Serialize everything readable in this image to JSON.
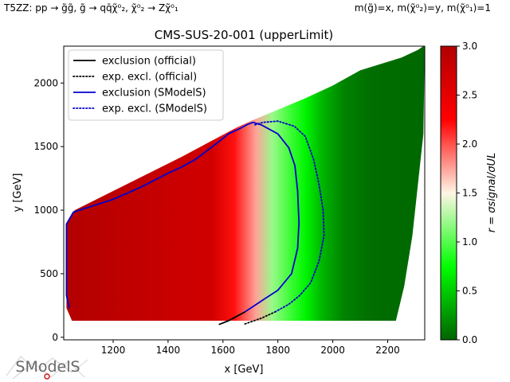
{
  "header": {
    "left": "T5ZZ: pp → g̃g̃, g̃ → qq̄χ̃⁰₂, χ̃⁰₂ → Zχ̃⁰₁",
    "right": "m(g̃)=x, m(χ̃⁰₂)=y, m(χ̃⁰₁)=1"
  },
  "logo": {
    "text": "SModelS"
  },
  "chart_data": {
    "type": "heatmap",
    "title": "CMS-SUS-20-001 (upperLimit)",
    "xlabel": "x [GeV]",
    "ylabel": "y [GeV]",
    "xlim": [
      1020,
      2335
    ],
    "ylim": [
      -20,
      2290
    ],
    "xticks": [
      1200,
      1400,
      1600,
      1800,
      2000,
      2200
    ],
    "yticks": [
      0,
      500,
      1000,
      1500,
      2000
    ],
    "colorbar": {
      "label": "r = σsignal/σUL",
      "range": [
        0.0,
        3.0
      ],
      "ticks": [
        0.0,
        0.5,
        1.0,
        1.5,
        2.0,
        2.5,
        3.0
      ],
      "colormap": [
        "#006400",
        "#00ff00",
        "#fff5e6",
        "#ff0000",
        "#b20000"
      ]
    },
    "region": {
      "lower_left": [
        [
          1050,
          130
        ],
        [
          1030,
          230
        ],
        [
          1030,
          900
        ],
        [
          1060,
          1000
        ]
      ],
      "upper_left_edge": [
        [
          1060,
          1000
        ],
        [
          1450,
          1420
        ],
        [
          1650,
          1650
        ],
        [
          1700,
          1700
        ]
      ],
      "upper_right_edge": [
        [
          1700,
          1700
        ],
        [
          1900,
          1880
        ],
        [
          2000,
          1980
        ],
        [
          2100,
          2100
        ],
        [
          2250,
          2200
        ],
        [
          2310,
          2260
        ],
        [
          2330,
          2290
        ]
      ],
      "bottom_y": 130,
      "bottom_right_x": 2230,
      "right_edge": [
        [
          2230,
          130
        ],
        [
          2260,
          400
        ],
        [
          2290,
          800
        ],
        [
          2310,
          1200
        ],
        [
          2330,
          1600
        ],
        [
          2335,
          2290
        ]
      ]
    },
    "r_profile": {
      "x": [
        1020,
        1560,
        1640,
        1720,
        1780,
        1840,
        1900,
        1960,
        2040,
        2140,
        2335
      ],
      "r": [
        3.0,
        2.7,
        2.2,
        1.75,
        1.2,
        0.95,
        0.7,
        0.4,
        0.15,
        0.05,
        0.02
      ]
    },
    "legend": {
      "position": "upper-left",
      "entries": [
        {
          "label": "exclusion (official)",
          "color": "#000000",
          "style": "solid"
        },
        {
          "label": "exp. excl. (official)",
          "color": "#000000",
          "style": "dotted"
        },
        {
          "label": "exclusion (SModelS)",
          "color": "#0000cc",
          "style": "solid"
        },
        {
          "label": "exp. excl. (SModelS)",
          "color": "#0000cc",
          "style": "dotted"
        }
      ]
    },
    "series": [
      {
        "name": "exclusion (official)",
        "color": "#000000",
        "style": "solid",
        "points": [
          [
            1585,
            100
          ],
          [
            1620,
            130
          ],
          [
            1680,
            200
          ]
        ]
      },
      {
        "name": "exp. excl. (official)",
        "color": "#000000",
        "style": "dotted",
        "points": [
          [
            1680,
            105
          ],
          [
            1740,
            150
          ],
          [
            1790,
            200
          ]
        ]
      },
      {
        "name": "exclusion (SModelS)",
        "color": "#0000cc",
        "style": "solid",
        "points": [
          [
            1040,
            230
          ],
          [
            1030,
            330
          ],
          [
            1030,
            890
          ],
          [
            1055,
            985
          ],
          [
            1120,
            1030
          ],
          [
            1200,
            1085
          ],
          [
            1300,
            1180
          ],
          [
            1400,
            1290
          ],
          [
            1450,
            1340
          ],
          [
            1500,
            1400
          ],
          [
            1580,
            1530
          ],
          [
            1620,
            1600
          ],
          [
            1660,
            1640
          ],
          [
            1690,
            1675
          ],
          [
            1710,
            1690
          ],
          [
            1740,
            1670
          ],
          [
            1800,
            1600
          ],
          [
            1840,
            1490
          ],
          [
            1862,
            1350
          ],
          [
            1872,
            1150
          ],
          [
            1877,
            900
          ],
          [
            1872,
            700
          ],
          [
            1850,
            500
          ],
          [
            1800,
            370
          ],
          [
            1750,
            300
          ],
          [
            1680,
            200
          ]
        ]
      },
      {
        "name": "exp. excl. (SModelS)",
        "color": "#0000cc",
        "style": "dotted",
        "points": [
          [
            1790,
            200
          ],
          [
            1840,
            260
          ],
          [
            1880,
            330
          ],
          [
            1920,
            430
          ],
          [
            1950,
            600
          ],
          [
            1968,
            800
          ],
          [
            1965,
            1000
          ],
          [
            1950,
            1200
          ],
          [
            1930,
            1400
          ],
          [
            1900,
            1580
          ],
          [
            1860,
            1660
          ],
          [
            1800,
            1700
          ],
          [
            1745,
            1690
          ],
          [
            1715,
            1670
          ]
        ]
      }
    ]
  }
}
